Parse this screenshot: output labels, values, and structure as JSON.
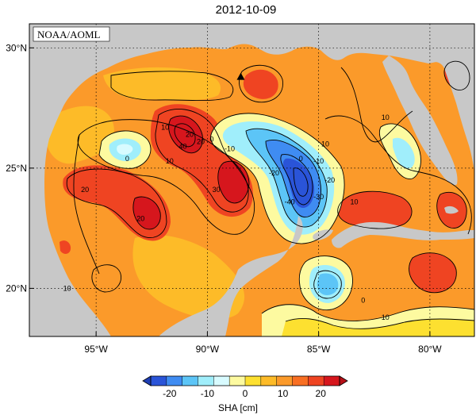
{
  "title": "2012-10-09",
  "stamp": "NOAA/AOML",
  "map": {
    "lon_range": [
      -98.0,
      -78.0
    ],
    "lat_range": [
      18.0,
      31.0
    ],
    "x_ticks": [
      {
        "lon": -95,
        "label": "95°W"
      },
      {
        "lon": -90,
        "label": "90°W"
      },
      {
        "lon": -85,
        "label": "85°W"
      },
      {
        "lon": -80,
        "label": "80°W"
      }
    ],
    "y_ticks": [
      {
        "lat": 30,
        "label": "30°N"
      },
      {
        "lat": 25,
        "label": "25°N"
      },
      {
        "lat": 20,
        "label": "20°N"
      }
    ],
    "grid": "dotted",
    "land_color": "#c8c8c8",
    "ocean_base_color": "#fb9a2a",
    "marker": {
      "type": "triangle",
      "lon": -88.5,
      "lat": 28.8
    }
  },
  "contour_labels": [
    {
      "text": "10",
      "lon": -91.9,
      "lat": 26.6
    },
    {
      "text": "20",
      "lon": -90.8,
      "lat": 26.3
    },
    {
      "text": "40",
      "lon": -91.1,
      "lat": 25.8
    },
    {
      "text": "20",
      "lon": -90.3,
      "lat": 26.0
    },
    {
      "text": "10",
      "lon": -91.7,
      "lat": 25.2
    },
    {
      "text": "0",
      "lon": -93.6,
      "lat": 25.3
    },
    {
      "text": "30",
      "lon": -89.6,
      "lat": 24.0
    },
    {
      "text": "20",
      "lon": -95.5,
      "lat": 24.0
    },
    {
      "text": "20",
      "lon": -93.0,
      "lat": 22.8
    },
    {
      "text": "0",
      "lon": -89.8,
      "lat": 26.1
    },
    {
      "text": "-10",
      "lon": -89.0,
      "lat": 25.7
    },
    {
      "text": "-20",
      "lon": -87.0,
      "lat": 24.7
    },
    {
      "text": "0",
      "lon": -85.8,
      "lat": 25.3
    },
    {
      "text": "-10",
      "lon": -85.0,
      "lat": 25.2
    },
    {
      "text": "-20",
      "lon": -84.5,
      "lat": 24.4
    },
    {
      "text": "-30",
      "lon": -85.0,
      "lat": 23.7
    },
    {
      "text": "-40",
      "lon": -86.3,
      "lat": 23.5
    },
    {
      "text": "10",
      "lon": -84.7,
      "lat": 25.9
    },
    {
      "text": "10",
      "lon": -83.4,
      "lat": 23.5
    },
    {
      "text": "10",
      "lon": -82.0,
      "lat": 27.0
    },
    {
      "text": "10",
      "lon": -96.3,
      "lat": 19.9
    },
    {
      "text": "0",
      "lon": -83.0,
      "lat": 19.4
    },
    {
      "text": "10",
      "lon": -82.0,
      "lat": 18.7
    }
  ],
  "colorbar": {
    "label": "SHA [cm]",
    "colors": [
      "#2a54d8",
      "#3f8cf2",
      "#5cc5f7",
      "#a0eefb",
      "#d8fbff",
      "#fdfaa0",
      "#fde030",
      "#fdbb28",
      "#fb9a2a",
      "#f86f23",
      "#ef4422",
      "#d6161d"
    ],
    "ticks": [
      "-20",
      "-10",
      "0",
      "10",
      "20"
    ],
    "min": -25,
    "max": 25
  }
}
